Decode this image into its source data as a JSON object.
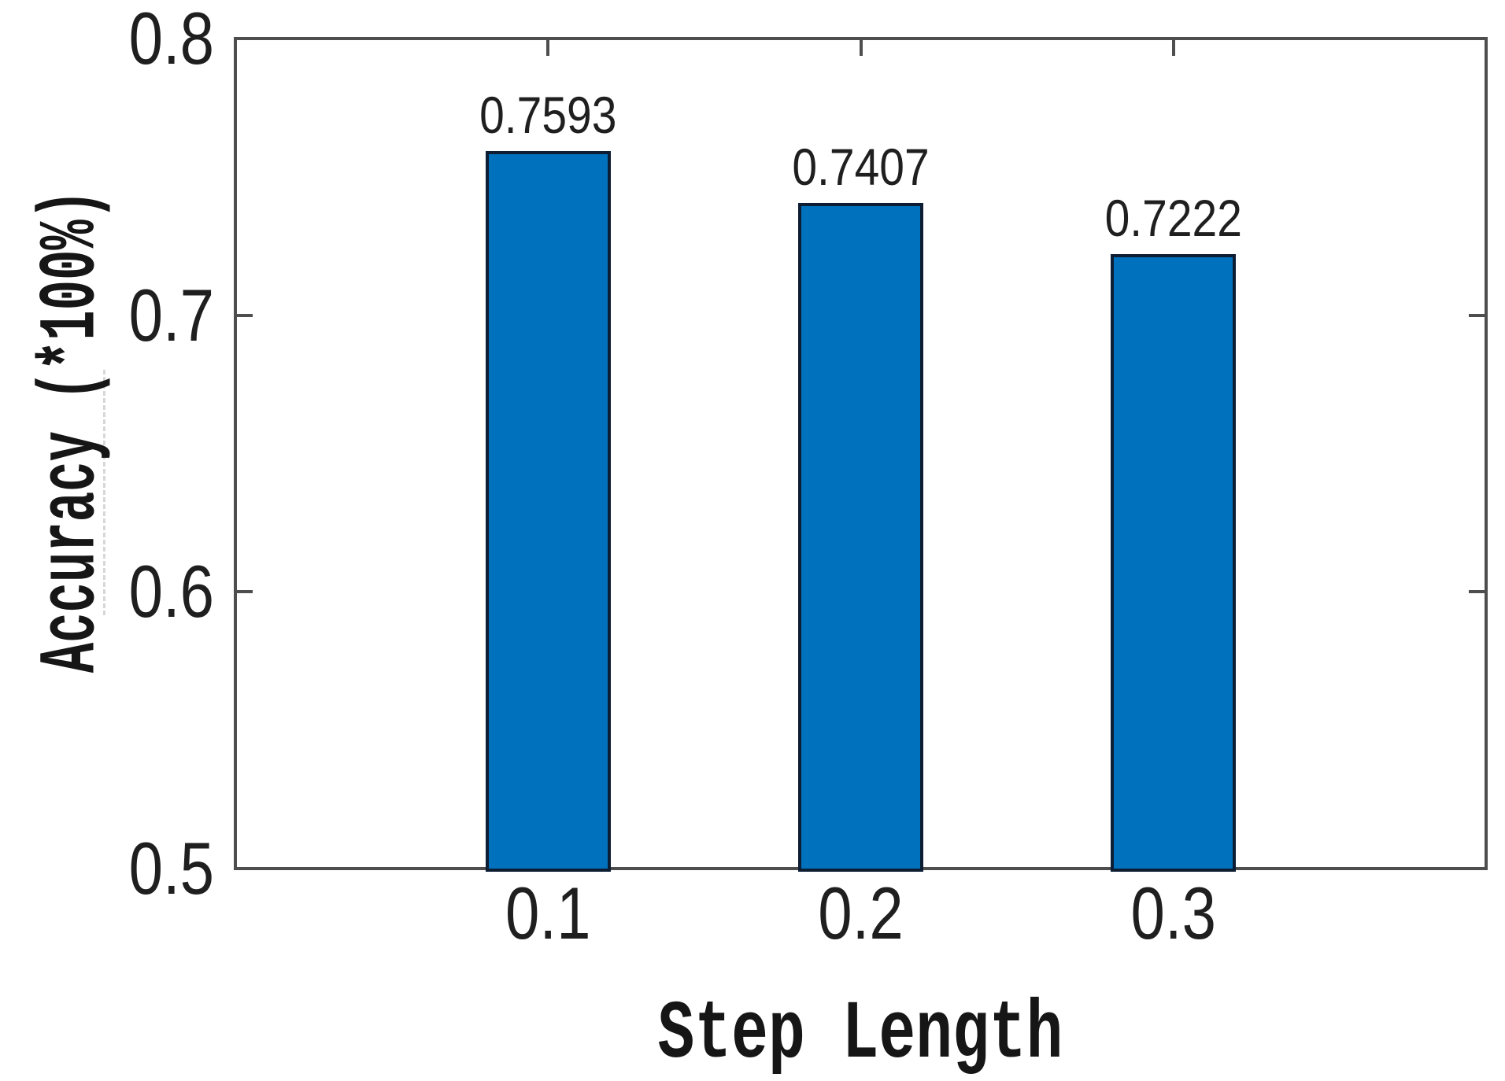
{
  "chart_data": {
    "type": "bar",
    "title": "",
    "categories": [
      "0.1",
      "0.2",
      "0.3"
    ],
    "values": [
      0.7593,
      0.7407,
      0.7222
    ],
    "bar_value_labels": [
      "0.7593",
      "0.7407",
      "0.7222"
    ],
    "xlabel": "Step Length",
    "ylabel": "Accuracy (*100%)",
    "ylim": [
      0.5,
      0.8
    ],
    "yticks": [
      0.5,
      0.6,
      0.7,
      0.8
    ],
    "ytick_labels": [
      "0.5",
      "0.6",
      "0.7",
      "0.8"
    ],
    "xtick_labels": [
      "0.1",
      "0.2",
      "0.3"
    ],
    "grid": false,
    "legend_position": "none",
    "bar_width_fraction": 0.4,
    "colors": {
      "bar_fill": "#0072BD",
      "bar_edge": "#0d1d33",
      "axis_line": "#4e4e4e",
      "tick_label": "#1f1f1f",
      "axis_label": "#161616",
      "background": "#ffffff"
    }
  }
}
